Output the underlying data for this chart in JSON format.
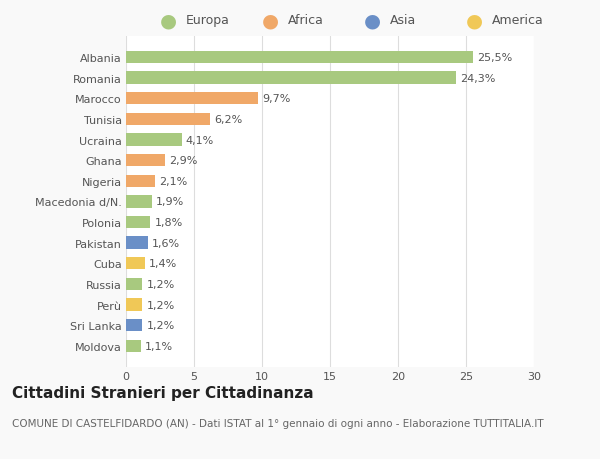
{
  "categories": [
    "Albania",
    "Romania",
    "Marocco",
    "Tunisia",
    "Ucraina",
    "Ghana",
    "Nigeria",
    "Macedonia d/N.",
    "Polonia",
    "Pakistan",
    "Cuba",
    "Russia",
    "Perù",
    "Sri Lanka",
    "Moldova"
  ],
  "values": [
    25.5,
    24.3,
    9.7,
    6.2,
    4.1,
    2.9,
    2.1,
    1.9,
    1.8,
    1.6,
    1.4,
    1.2,
    1.2,
    1.2,
    1.1
  ],
  "labels": [
    "25,5%",
    "24,3%",
    "9,7%",
    "6,2%",
    "4,1%",
    "2,9%",
    "2,1%",
    "1,9%",
    "1,8%",
    "1,6%",
    "1,4%",
    "1,2%",
    "1,2%",
    "1,2%",
    "1,1%"
  ],
  "colors": [
    "#a8c97f",
    "#a8c97f",
    "#f0a868",
    "#f0a868",
    "#a8c97f",
    "#f0a868",
    "#f0a868",
    "#a8c97f",
    "#a8c97f",
    "#6a8fc7",
    "#f0c857",
    "#a8c97f",
    "#f0c857",
    "#6a8fc7",
    "#a8c97f"
  ],
  "legend_labels": [
    "Europa",
    "Africa",
    "Asia",
    "America"
  ],
  "legend_colors": [
    "#a8c97f",
    "#f0a868",
    "#6a8fc7",
    "#f0c857"
  ],
  "title": "Cittadini Stranieri per Cittadinanza",
  "subtitle": "COMUNE DI CASTELFIDARDO (AN) - Dati ISTAT al 1° gennaio di ogni anno - Elaborazione TUTTITALIA.IT",
  "xlim": [
    0,
    30
  ],
  "xticks": [
    0,
    5,
    10,
    15,
    20,
    25,
    30
  ],
  "background_color": "#f9f9f9",
  "bar_bg": "#ffffff",
  "grid_color": "#dddddd",
  "title_fontsize": 11,
  "subtitle_fontsize": 7.5,
  "label_fontsize": 8,
  "tick_fontsize": 8,
  "legend_fontsize": 9,
  "bar_height": 0.6
}
